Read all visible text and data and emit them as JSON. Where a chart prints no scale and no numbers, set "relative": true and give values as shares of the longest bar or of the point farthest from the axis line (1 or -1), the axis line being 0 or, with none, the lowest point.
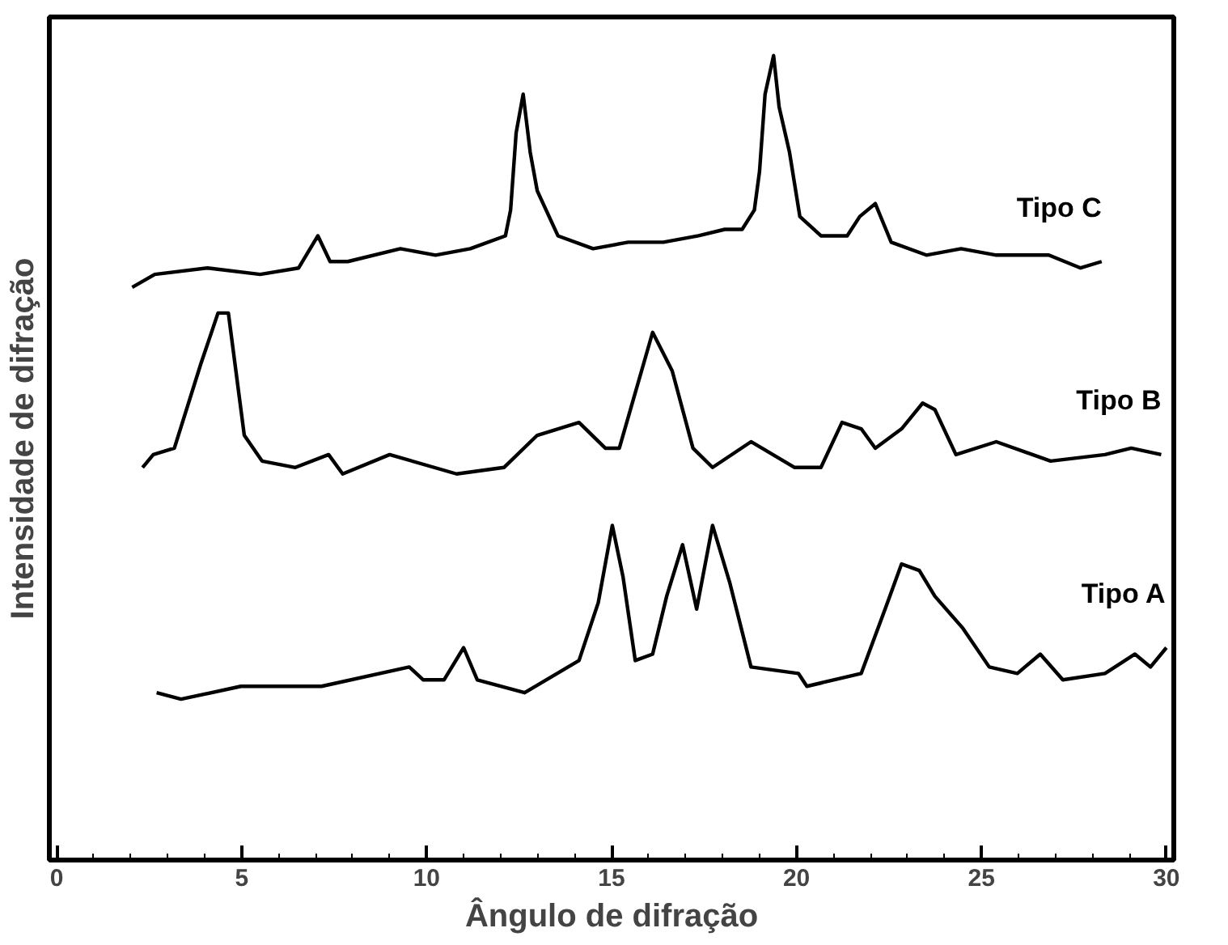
{
  "chart_data": {
    "type": "line",
    "relative": true,
    "xlabel": "Ângulo de difração",
    "ylabel": "Intensidade de difração",
    "xlim": [
      -0.2,
      30.2
    ],
    "xticks": [
      0,
      5,
      10,
      15,
      20,
      25,
      30
    ],
    "grid": false,
    "legend": false,
    "marker": "none",
    "line_style": "solid",
    "series": [
      {
        "name": "Tipo C",
        "color": "#000000",
        "x": [
          2.04,
          2.65,
          4.08,
          5.5,
          6.54,
          7.06,
          7.39,
          7.87,
          9.29,
          10.24,
          11.18,
          12.13,
          12.27,
          12.42,
          12.61,
          12.8,
          12.99,
          13.55,
          14.5,
          15.45,
          16.4,
          17.35,
          18.06,
          18.53,
          18.86,
          19.0,
          19.15,
          19.38,
          19.53,
          19.81,
          20.09,
          20.66,
          21.37,
          21.71,
          22.13,
          22.56,
          23.51,
          24.45,
          25.4,
          26.82,
          27.68,
          28.25
        ],
        "values": [
          0.64,
          0.66,
          0.67,
          0.66,
          0.67,
          0.72,
          0.68,
          0.68,
          0.7,
          0.69,
          0.7,
          0.72,
          0.76,
          0.88,
          0.94,
          0.85,
          0.79,
          0.72,
          0.7,
          0.71,
          0.71,
          0.72,
          0.73,
          0.73,
          0.76,
          0.82,
          0.94,
          1.0,
          0.92,
          0.85,
          0.75,
          0.72,
          0.72,
          0.75,
          0.77,
          0.71,
          0.69,
          0.7,
          0.69,
          0.69,
          0.67,
          0.68
        ]
      },
      {
        "name": "Tipo B",
        "color": "#000000",
        "x": [
          2.32,
          2.61,
          3.18,
          3.89,
          4.36,
          4.64,
          5.07,
          5.55,
          6.45,
          7.35,
          7.73,
          9.0,
          10.81,
          12.09,
          12.99,
          14.12,
          14.83,
          15.21,
          16.11,
          16.64,
          17.2,
          17.73,
          18.77,
          19.95,
          20.66,
          21.23,
          21.75,
          22.13,
          22.84,
          23.41,
          23.74,
          24.31,
          25.4,
          26.87,
          28.34,
          29.05,
          29.86
        ],
        "values": [
          0.36,
          0.38,
          0.39,
          0.52,
          0.6,
          0.6,
          0.41,
          0.37,
          0.36,
          0.38,
          0.35,
          0.38,
          0.35,
          0.36,
          0.41,
          0.43,
          0.39,
          0.39,
          0.57,
          0.51,
          0.39,
          0.36,
          0.4,
          0.36,
          0.36,
          0.43,
          0.42,
          0.39,
          0.42,
          0.46,
          0.45,
          0.38,
          0.4,
          0.37,
          0.38,
          0.39,
          0.38
        ]
      },
      {
        "name": "Tipo A",
        "color": "#000000",
        "x": [
          2.7,
          3.36,
          4.98,
          7.16,
          9.53,
          9.91,
          10.47,
          11.0,
          11.37,
          12.65,
          14.12,
          14.64,
          15.02,
          15.31,
          15.64,
          16.11,
          16.49,
          16.92,
          17.3,
          17.73,
          18.2,
          18.77,
          20.05,
          20.28,
          21.75,
          22.46,
          22.84,
          23.32,
          23.74,
          24.5,
          25.21,
          25.97,
          26.59,
          27.2,
          28.34,
          29.15,
          29.57,
          30.0
        ],
        "values": [
          0.01,
          0.0,
          0.02,
          0.02,
          0.05,
          0.03,
          0.03,
          0.08,
          0.03,
          0.01,
          0.06,
          0.15,
          0.27,
          0.19,
          0.06,
          0.07,
          0.16,
          0.24,
          0.14,
          0.27,
          0.18,
          0.05,
          0.04,
          0.02,
          0.04,
          0.15,
          0.21,
          0.2,
          0.16,
          0.11,
          0.05,
          0.04,
          0.07,
          0.03,
          0.04,
          0.07,
          0.05,
          0.08
        ]
      }
    ]
  }
}
